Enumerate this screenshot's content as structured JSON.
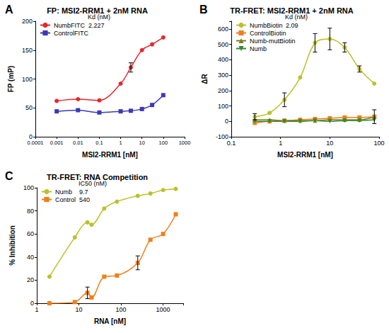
{
  "chart_data": [
    {
      "type": "line",
      "title": "FP: MSI2-RRM1 + 2nM RNA",
      "x_label": "MSI2-RRM1 [nM]",
      "y_label": "FP (mP)",
      "annotations": {
        "panel": "A",
        "note_header": "Kd (nM)"
      },
      "log": "x",
      "grid": false,
      "xlim": [
        0.0001,
        1000
      ],
      "xticks": [
        0.0001,
        0.001,
        0.01,
        0.1,
        1,
        10,
        100,
        1000
      ],
      "ylim": [
        0,
        200
      ],
      "yticks": [
        0,
        50,
        100,
        150,
        200
      ],
      "series": [
        {
          "name": "NumbFITC",
          "color": "#e8262a",
          "marker": "circle",
          "kd": 2.227,
          "x": [
            0.001,
            0.01,
            0.1,
            1,
            3,
            10,
            30,
            100
          ],
          "values": [
            62,
            65,
            63,
            92,
            120,
            150,
            160,
            172
          ],
          "errors": [
            null,
            null,
            null,
            null,
            8,
            null,
            null,
            null
          ]
        },
        {
          "name": "ControlFITC",
          "color": "#3a3ab8",
          "marker": "square",
          "x": [
            0.001,
            0.01,
            0.1,
            1,
            3,
            10,
            30,
            100
          ],
          "values": [
            44,
            46,
            42,
            44,
            45,
            48,
            55,
            72
          ]
        }
      ]
    },
    {
      "type": "line",
      "title": "TR-FRET: MSI2-RRM1 + 2nM RNA",
      "x_label": "MSI2-RRM1 [nM]",
      "y_label": "ΔR",
      "annotations": {
        "panel": "B",
        "note_header": "Kd (nM)"
      },
      "log": "x",
      "grid": false,
      "xlim": [
        0.1,
        100
      ],
      "xticks": [
        0.1,
        1,
        10,
        100
      ],
      "ylim": [
        -100,
        650
      ],
      "yticks": [
        -100,
        0,
        100,
        200,
        300,
        400,
        500,
        600
      ],
      "series": [
        {
          "name": "NumbBiotin",
          "color": "#bcc02c",
          "marker": "circle",
          "kd": 2.09,
          "x": [
            0.3,
            0.6,
            1.2,
            2.5,
            5,
            10,
            20,
            40,
            80
          ],
          "values": [
            30,
            55,
            140,
            285,
            510,
            535,
            480,
            340,
            245
          ],
          "errors": [
            20,
            null,
            45,
            null,
            60,
            70,
            30,
            20,
            null
          ]
        },
        {
          "name": "ControlBiotin",
          "color": "#f07f1a",
          "marker": "square",
          "x": [
            0.3,
            0.6,
            1.2,
            2.5,
            5,
            10,
            20,
            40,
            80
          ],
          "values": [
            -10,
            0,
            5,
            10,
            15,
            20,
            25,
            25,
            30
          ]
        },
        {
          "name": "Numb-mutBiotin",
          "color": "#7f7f24",
          "marker": "triangle",
          "x": [
            0.3,
            0.6,
            1.2,
            2.5,
            5,
            10,
            20,
            40,
            80
          ],
          "values": [
            10,
            10,
            5,
            5,
            5,
            10,
            10,
            10,
            30
          ],
          "errors": [
            null,
            null,
            null,
            null,
            null,
            null,
            null,
            null,
            45
          ]
        },
        {
          "name": "Numb",
          "color": "#2e8b2e",
          "marker": "triangle-down",
          "x": [
            0.3,
            0.6,
            1.2,
            2.5,
            5,
            10,
            20,
            40,
            80
          ],
          "values": [
            0,
            0,
            0,
            0,
            5,
            0,
            5,
            5,
            10
          ]
        }
      ]
    },
    {
      "type": "line",
      "title": "TR-FRET: RNA Competition",
      "x_label": "RNA [nM]",
      "y_label": "% Inhibition",
      "annotations": {
        "panel": "C",
        "note_header": "IC50 (nM)"
      },
      "log": "x",
      "grid": false,
      "xlim": [
        1,
        3000
      ],
      "xticks": [
        1,
        10,
        100,
        1000
      ],
      "ylim": [
        0,
        100
      ],
      "yticks": [
        0,
        20,
        40,
        60,
        80,
        100
      ],
      "series": [
        {
          "name": "Numb",
          "color": "#bcc02c",
          "marker": "circle",
          "ic50": 9.7,
          "x": [
            2,
            8,
            16,
            20,
            40,
            80,
            250,
            500,
            1000,
            2000
          ],
          "values": [
            23,
            57,
            70,
            68,
            82,
            88,
            93,
            95,
            98,
            99
          ]
        },
        {
          "name": "Control",
          "color": "#f07f1a",
          "marker": "square",
          "ic50": 540,
          "x": [
            2,
            8,
            16,
            20,
            40,
            80,
            250,
            500,
            1000,
            2000
          ],
          "values": [
            0,
            1,
            9,
            5,
            23,
            24,
            35,
            55,
            60,
            77
          ],
          "errors": [
            null,
            null,
            5,
            null,
            null,
            null,
            6,
            null,
            null,
            null
          ]
        }
      ]
    }
  ]
}
